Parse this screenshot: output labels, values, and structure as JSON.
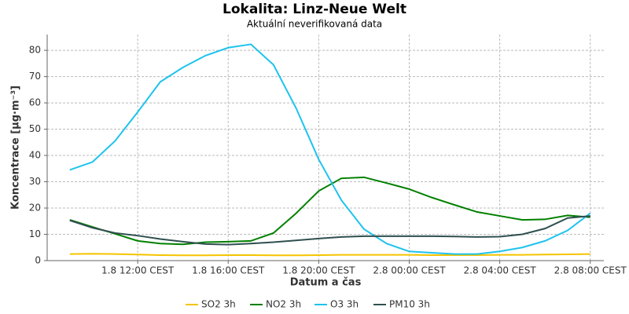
{
  "chart_data": {
    "type": "line",
    "title": "Lokalita: Linz-Neue Welt",
    "subtitle": "Aktuální neverifikovaná data",
    "x_label": "Datum a čas",
    "y_label": "Koncentrace [µg·m⁻³]",
    "x": [
      9,
      10,
      11,
      12,
      13,
      14,
      15,
      16,
      17,
      18,
      19,
      20,
      21,
      22,
      23,
      24,
      25,
      26,
      27,
      28,
      29,
      30,
      31,
      32
    ],
    "xlim": [
      8,
      32.6
    ],
    "xticks": [
      {
        "value": 12,
        "label": "1.8 12:00 CEST"
      },
      {
        "value": 16,
        "label": "1.8 16:00 CEST"
      },
      {
        "value": 20,
        "label": "1.8 20:00 CEST"
      },
      {
        "value": 24,
        "label": "2.8 00:00 CEST"
      },
      {
        "value": 28,
        "label": "2.8 04:00 CEST"
      },
      {
        "value": 32,
        "label": "2.8 08:00 CEST"
      }
    ],
    "ylim": [
      0,
      86
    ],
    "yticks": [
      0,
      10,
      20,
      30,
      40,
      50,
      60,
      70,
      80
    ],
    "grid": true,
    "legend": "bottom",
    "series": [
      {
        "name": "SO2 3h",
        "color": "#f5c400",
        "values": [
          2.5,
          2.6,
          2.5,
          2.3,
          2.1,
          2,
          2,
          2.1,
          2.1,
          2,
          2,
          2.1,
          2.2,
          2.2,
          2.2,
          2.2,
          2.1,
          2.1,
          2.1,
          2.2,
          2.2,
          2.3,
          2.4,
          2.5
        ]
      },
      {
        "name": "NO2 3h",
        "color": "#008000",
        "values": [
          15.5,
          12.8,
          10.2,
          7.5,
          6.5,
          6.2,
          7,
          7.2,
          7.5,
          10.5,
          18,
          26.5,
          31.3,
          31.7,
          29.5,
          27.2,
          24,
          21.2,
          18.5,
          17,
          15.5,
          15.7,
          17.2,
          16.5
        ]
      },
      {
        "name": "O3 3h",
        "color": "#1ec3ee",
        "values": [
          34.5,
          37.5,
          45.5,
          56.5,
          68,
          73.5,
          78,
          81,
          82.3,
          74.5,
          58,
          38.5,
          23,
          12,
          6.5,
          3.5,
          3,
          2.5,
          2.5,
          3.5,
          5,
          7.5,
          11.5,
          18
        ]
      },
      {
        "name": "PM10 3h",
        "color": "#2f4f4f",
        "values": [
          15.3,
          12.5,
          10.5,
          9.5,
          8.2,
          7.2,
          6.3,
          6.1,
          6.5,
          7,
          7.7,
          8.4,
          9,
          9.3,
          9.3,
          9.3,
          9.3,
          9.2,
          9,
          9.1,
          10,
          12.2,
          16.2,
          17
        ]
      }
    ]
  }
}
